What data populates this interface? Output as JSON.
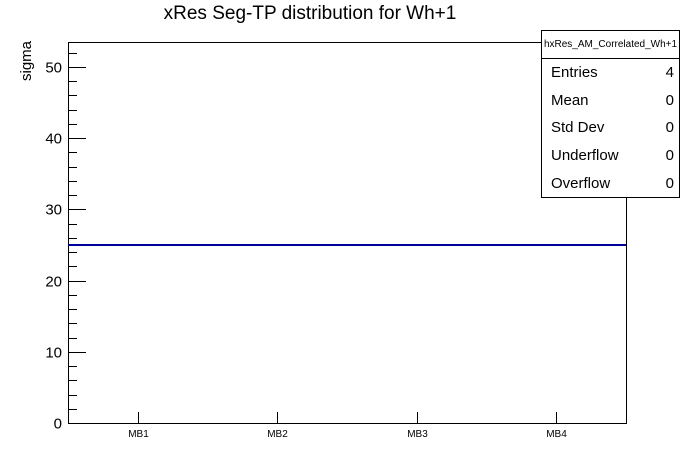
{
  "title": "xRes Seg-TP distribution for Wh+1",
  "y_axis": {
    "label": "sigma",
    "tick_labels": [
      "0",
      "10",
      "20",
      "30",
      "40",
      "50"
    ]
  },
  "x_axis": {
    "tick_labels": [
      "MB1",
      "MB2",
      "MB3",
      "MB4"
    ]
  },
  "stats_box": {
    "header": "hxRes_AM_Correlated_Wh+1",
    "rows": [
      {
        "label": "Entries",
        "value": "4"
      },
      {
        "label": "Mean",
        "value": "0"
      },
      {
        "label": "Std Dev",
        "value": "0"
      },
      {
        "label": "Underflow",
        "value": "0"
      },
      {
        "label": "Overflow",
        "value": "0"
      }
    ]
  },
  "chart_data": {
    "type": "line",
    "title": "xRes Seg-TP distribution for Wh+1",
    "xlabel": "",
    "ylabel": "sigma",
    "categories": [
      "MB1",
      "MB2",
      "MB3",
      "MB4"
    ],
    "values": [
      25,
      25,
      25,
      25
    ],
    "ylim": [
      0,
      53.5
    ],
    "y_major_ticks": [
      0,
      10,
      20,
      30,
      40,
      50
    ],
    "y_minor_step": 2,
    "grid": false,
    "legend_position": "stats-box-top-right",
    "line_color": "#000099",
    "frame_color": "#000000",
    "background_color": "#ffffff"
  }
}
